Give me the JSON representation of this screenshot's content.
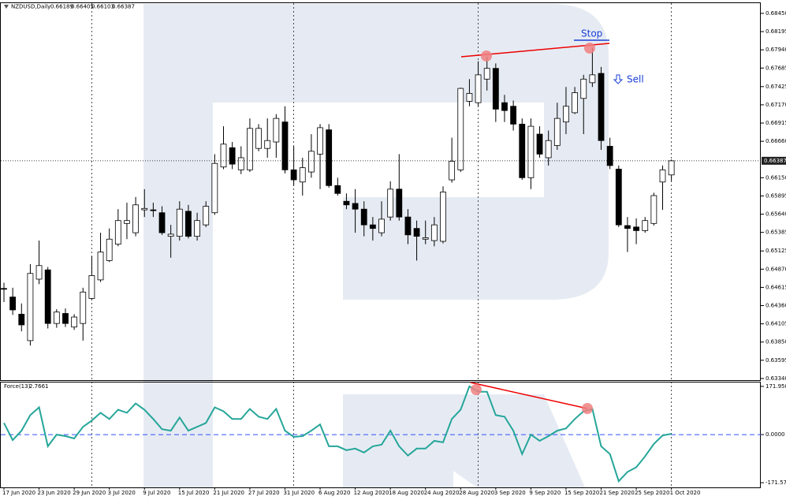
{
  "chart_data": [
    {
      "type": "candlestick",
      "symbol": "NZDUSD,Daily",
      "open": [
        0.646,
        0.6448,
        0.6424,
        0.6387,
        0.6473,
        0.6486,
        0.6411,
        0.6425,
        0.6406,
        0.6411,
        0.6446,
        0.6472,
        0.6499,
        0.6522,
        0.6551,
        0.6538,
        0.657,
        0.657,
        0.6566,
        0.6533,
        0.6533,
        0.6568,
        0.6533,
        0.6549,
        0.6566,
        0.663,
        0.6657,
        0.6626,
        0.6626,
        0.6656,
        0.6656,
        0.6665,
        0.6693,
        0.6626,
        0.6609,
        0.6623,
        0.6648,
        0.6682,
        0.6604,
        0.6582,
        0.6579,
        0.6571,
        0.6549,
        0.6538,
        0.656,
        0.6599,
        0.656,
        0.6544,
        0.6529,
        0.6527,
        0.6526,
        0.6612,
        0.6626,
        0.6722,
        0.672,
        0.6753,
        0.6768,
        0.672,
        0.6715,
        0.669,
        0.6615,
        0.6676,
        0.6643,
        0.666,
        0.6693,
        0.6706,
        0.6726,
        0.6748,
        0.6761,
        0.6659,
        0.6627,
        0.6548,
        0.6546,
        0.6541,
        0.6551,
        0.6609,
        0.66189
      ],
      "high": [
        0.6468,
        0.6461,
        0.6439,
        0.6494,
        0.6527,
        0.649,
        0.6431,
        0.6432,
        0.6424,
        0.6461,
        0.6505,
        0.6538,
        0.6544,
        0.6571,
        0.658,
        0.6588,
        0.6599,
        0.658,
        0.6575,
        0.6549,
        0.6582,
        0.6577,
        0.6566,
        0.6582,
        0.6648,
        0.6687,
        0.6665,
        0.6659,
        0.6698,
        0.669,
        0.6698,
        0.6704,
        0.6715,
        0.6659,
        0.6643,
        0.6676,
        0.669,
        0.669,
        0.6615,
        0.6593,
        0.6599,
        0.6582,
        0.656,
        0.6582,
        0.661,
        0.6648,
        0.6571,
        0.6555,
        0.6555,
        0.656,
        0.6603,
        0.6671,
        0.6741,
        0.6753,
        0.6778,
        0.6784,
        0.6775,
        0.6731,
        0.6723,
        0.6698,
        0.6698,
        0.6687,
        0.6681,
        0.672,
        0.6742,
        0.6742,
        0.6759,
        0.6797,
        0.677,
        0.6671,
        0.6632,
        0.656,
        0.6558,
        0.656,
        0.6594,
        0.6632,
        0.66405
      ],
      "low": [
        0.6441,
        0.6423,
        0.64,
        0.638,
        0.6466,
        0.6404,
        0.6405,
        0.6406,
        0.6402,
        0.6387,
        0.6444,
        0.6469,
        0.6497,
        0.6519,
        0.6529,
        0.6533,
        0.656,
        0.656,
        0.6535,
        0.6503,
        0.6527,
        0.653,
        0.6527,
        0.6546,
        0.6563,
        0.6627,
        0.6627,
        0.662,
        0.6623,
        0.6652,
        0.6643,
        0.6643,
        0.6621,
        0.6604,
        0.659,
        0.6615,
        0.6599,
        0.6601,
        0.659,
        0.6571,
        0.6538,
        0.6533,
        0.6527,
        0.6533,
        0.6555,
        0.6555,
        0.6522,
        0.6499,
        0.6522,
        0.6519,
        0.6523,
        0.6608,
        0.6623,
        0.6715,
        0.6715,
        0.6737,
        0.6693,
        0.6693,
        0.6681,
        0.6612,
        0.6599,
        0.6643,
        0.6632,
        0.6654,
        0.6676,
        0.6704,
        0.6676,
        0.6742,
        0.6654,
        0.6627,
        0.6546,
        0.6511,
        0.6522,
        0.6538,
        0.6548,
        0.657,
        0.66103
      ],
      "close": [
        0.6459,
        0.643,
        0.6409,
        0.6481,
        0.6492,
        0.6411,
        0.6427,
        0.6411,
        0.642,
        0.6455,
        0.6478,
        0.6511,
        0.6529,
        0.6555,
        0.6555,
        0.6577,
        0.6572,
        0.6569,
        0.6538,
        0.6536,
        0.6571,
        0.6533,
        0.6555,
        0.6575,
        0.6635,
        0.6662,
        0.6634,
        0.6643,
        0.6684,
        0.6684,
        0.6667,
        0.6698,
        0.6626,
        0.6612,
        0.6629,
        0.6652,
        0.6685,
        0.6604,
        0.6593,
        0.6577,
        0.6571,
        0.6549,
        0.6544,
        0.6557,
        0.6599,
        0.656,
        0.6535,
        0.6533,
        0.6531,
        0.6549,
        0.6595,
        0.6638,
        0.674,
        0.6733,
        0.6759,
        0.6768,
        0.6711,
        0.6709,
        0.669,
        0.6615,
        0.6687,
        0.6648,
        0.6667,
        0.6698,
        0.6715,
        0.6734,
        0.6753,
        0.6759,
        0.6667,
        0.6632,
        0.6549,
        0.6544,
        0.6541,
        0.6555,
        0.659,
        0.6626,
        0.66387
      ],
      "ylim": [
        0.63317,
        0.68582
      ],
      "yticks": [
        {
          "value": 0.6845,
          "label": "0.68450"
        },
        {
          "value": 0.68195,
          "label": "0.68195"
        },
        {
          "value": 0.6794,
          "label": "0.67940"
        },
        {
          "value": 0.67685,
          "label": "0.67685"
        },
        {
          "value": 0.67425,
          "label": "0.67425"
        },
        {
          "value": 0.6717,
          "label": "0.67170"
        },
        {
          "value": 0.66915,
          "label": "0.66915"
        },
        {
          "value": 0.6666,
          "label": "0.66660"
        },
        {
          "value": 0.6615,
          "label": "0.66150"
        },
        {
          "value": 0.65895,
          "label": "0.65895"
        },
        {
          "value": 0.6564,
          "label": "0.65640"
        },
        {
          "value": 0.65385,
          "label": "0.65385"
        },
        {
          "value": 0.65125,
          "label": "0.65125"
        },
        {
          "value": 0.6487,
          "label": "0.64870"
        },
        {
          "value": 0.64615,
          "label": "0.64615"
        },
        {
          "value": 0.6436,
          "label": "0.64360"
        },
        {
          "value": 0.64105,
          "label": "0.64105"
        },
        {
          "value": 0.6385,
          "label": "0.63850"
        },
        {
          "value": 0.63595,
          "label": "0.63595"
        },
        {
          "value": 0.6334,
          "label": "0.63340"
        }
      ],
      "annotations": [
        "Stop",
        "Sell"
      ]
    },
    {
      "type": "line",
      "indicator": "Force(13)",
      "color": "#26a69a",
      "values": [
        41.6,
        -19.4,
        13.9,
        69.4,
        97.1,
        -41.6,
        0,
        -5.5,
        -13.9,
        27.7,
        49.9,
        77.7,
        55.5,
        88.8,
        77.7,
        111,
        88.8,
        55.5,
        19.4,
        13.9,
        61,
        13.9,
        27.7,
        41.6,
        97.1,
        83.2,
        55.5,
        55.5,
        91.5,
        63.8,
        55.5,
        91.5,
        13.9,
        -8.3,
        -5.5,
        13.9,
        36.1,
        -41.6,
        -41.6,
        -55.5,
        -49.9,
        -63.8,
        -41.6,
        -36.1,
        13.9,
        -41.6,
        -74.9,
        -49.9,
        -49.9,
        -22.2,
        -27.7,
        55.5,
        88.8,
        172,
        152.6,
        152.6,
        69.4,
        63.8,
        13.9,
        -69.4,
        0,
        -22.2,
        -5.5,
        13.9,
        22.2,
        55.5,
        83.2,
        91.5,
        -41.6,
        -69.4,
        -166.4,
        -133.2,
        -116.5,
        -77.7,
        -33.3,
        -2.8,
        2.7661
      ],
      "ylim": [
        -188.2,
        185.8
      ],
      "yticks": [
        171.9501,
        {
          "value": 0,
          "label": "0.0000"
        },
        -171.5713
      ],
      "categories": [
        "17 Jun 2020",
        null,
        null,
        null,
        "23 Jun 2020",
        null,
        null,
        null,
        "29 Jun 2020",
        null,
        null,
        null,
        "3 Jul 2020",
        null,
        null,
        null,
        "9 Jul 2020",
        null,
        null,
        null,
        "15 Jul 2020",
        null,
        null,
        null,
        "21 Jul 2020",
        null,
        null,
        null,
        "27 Jul 2020",
        null,
        null,
        null,
        "31 Jul 2020",
        null,
        null,
        null,
        "6 Aug 2020",
        null,
        null,
        null,
        "12 Aug 2020",
        null,
        null,
        null,
        "18 Aug 2020",
        null,
        null,
        null,
        "24 Aug 2020",
        null,
        null,
        null,
        "28 Aug 2020",
        null,
        null,
        null,
        "3 Sep 2020",
        null,
        null,
        null,
        "9 Sep 2020",
        null,
        null,
        null,
        "15 Sep 2020",
        null,
        null,
        null,
        "21 Sep 2020",
        null,
        null,
        null,
        "25 Sep 2020",
        null,
        null,
        null,
        "1 Oct 2020"
      ]
    }
  ]
}
